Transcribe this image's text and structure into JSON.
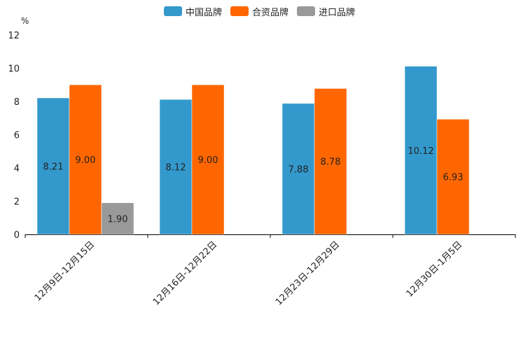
{
  "chart_data": {
    "type": "bar",
    "unit_label": "%",
    "categories": [
      "12月9日-12月15日",
      "12月16日-12月22日",
      "12月23日-12月29日",
      "12月30日-1月5日"
    ],
    "series": [
      {
        "name": "中国品牌",
        "color": "#3399cc",
        "values": [
          8.21,
          8.12,
          7.88,
          10.12
        ],
        "labels": [
          "8.21",
          "8.12",
          "7.88",
          "10.12"
        ]
      },
      {
        "name": "合资品牌",
        "color": "#ff6600",
        "values": [
          9.0,
          9.0,
          8.78,
          6.93
        ],
        "labels": [
          "9.00",
          "9.00",
          "8.78",
          "6.93"
        ]
      },
      {
        "name": "进口品牌",
        "color": "#999999",
        "values": [
          1.9,
          null,
          null,
          null
        ],
        "labels": [
          "1.90",
          "",
          "",
          ""
        ]
      }
    ],
    "yticks": [
      "0",
      "2",
      "4",
      "6",
      "8",
      "10",
      "12"
    ],
    "ylim": [
      0,
      12
    ],
    "legend_position": "top"
  }
}
